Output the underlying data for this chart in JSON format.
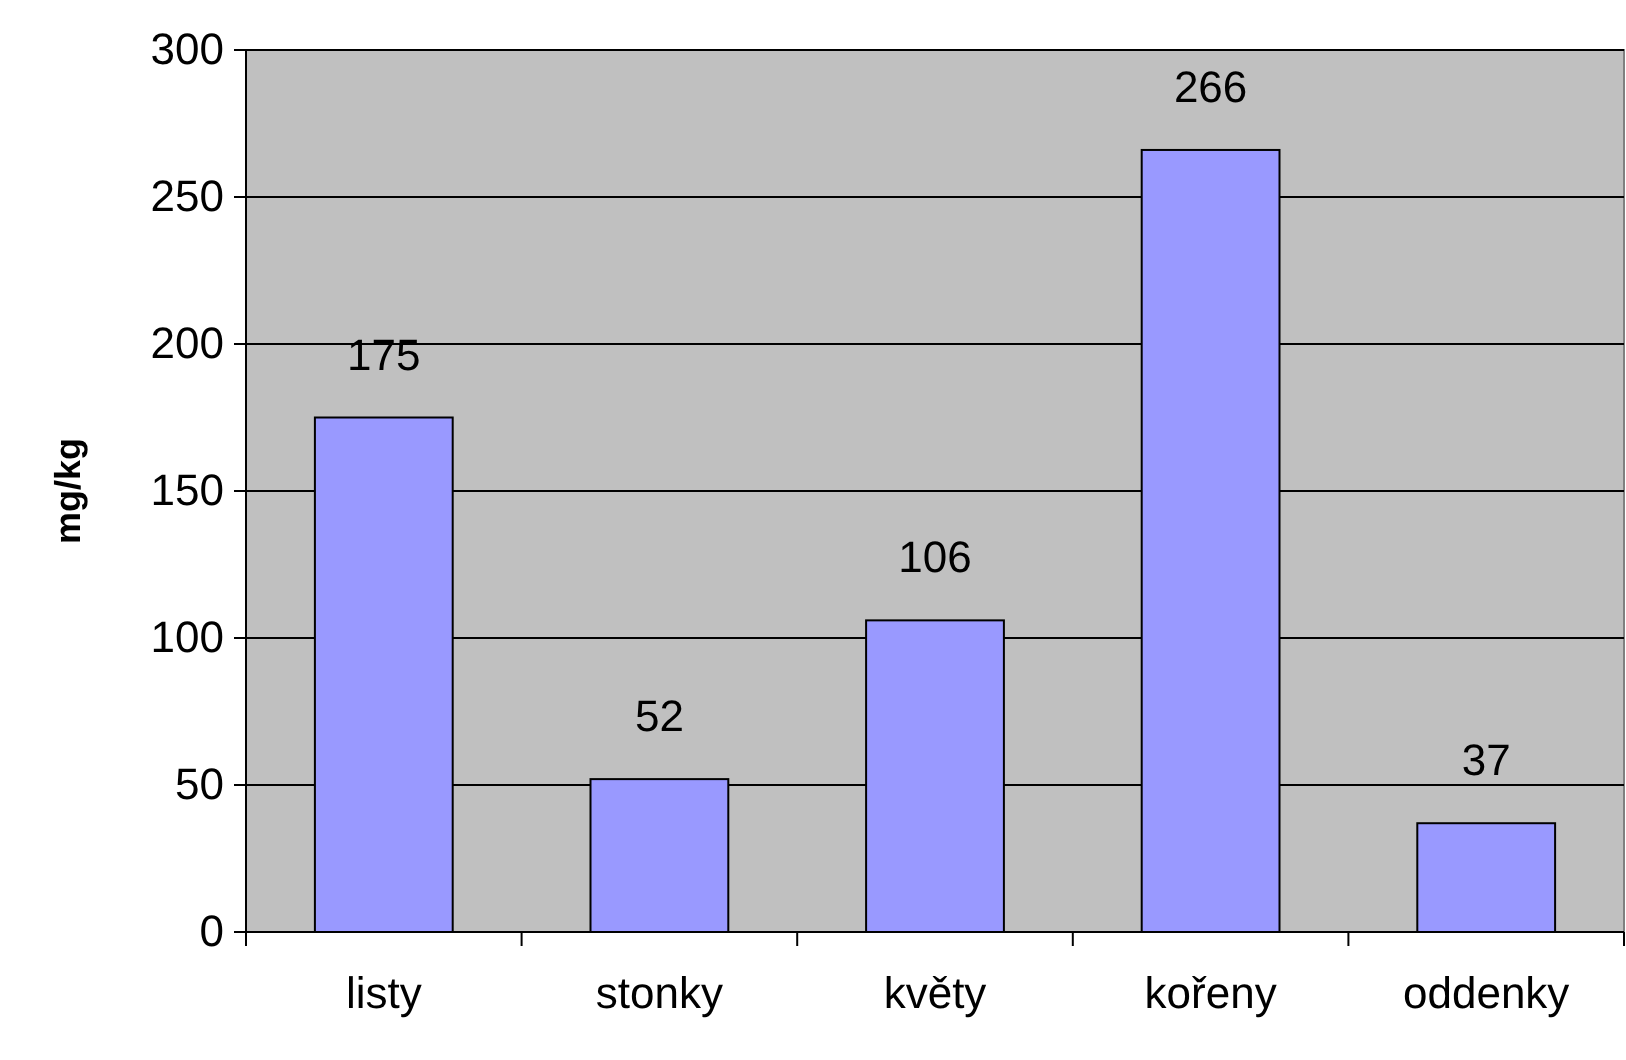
{
  "chart_data": {
    "type": "bar",
    "ylabel": "mg/kg",
    "categories": [
      "listy",
      "stonky",
      "květy",
      "kořeny",
      "oddenky"
    ],
    "values": [
      175,
      52,
      106,
      266,
      37
    ],
    "color": "#9999ff",
    "ylim": [
      0,
      300
    ],
    "yticks": [
      0,
      50,
      100,
      150,
      200,
      250,
      300
    ],
    "grid": "y",
    "data_labels": true
  }
}
